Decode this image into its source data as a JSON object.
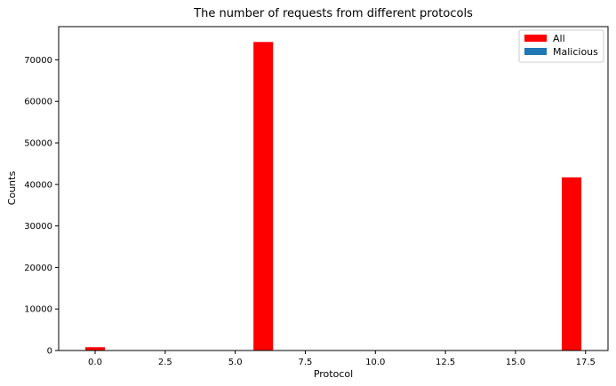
{
  "chart_data": {
    "type": "bar",
    "title": "The number of requests from different protocols",
    "xlabel": "Protocol",
    "ylabel": "Counts",
    "xlim": [
      -1.3,
      18.3
    ],
    "ylim": [
      0,
      78000
    ],
    "bar_width": 0.7,
    "x_ticks": [
      0.0,
      2.5,
      5.0,
      7.5,
      10.0,
      12.5,
      15.0,
      17.5
    ],
    "x_tick_labels": [
      "0.0",
      "2.5",
      "5.0",
      "7.5",
      "10.0",
      "12.5",
      "15.0",
      "17.5"
    ],
    "y_ticks": [
      0,
      10000,
      20000,
      30000,
      40000,
      50000,
      60000,
      70000
    ],
    "y_tick_labels": [
      "0",
      "10000",
      "20000",
      "30000",
      "40000",
      "50000",
      "60000",
      "70000"
    ],
    "grid": false,
    "legend_position": "upper right",
    "series": [
      {
        "name": "All",
        "color": "#ff0000",
        "x": [
          0,
          6,
          17
        ],
        "values": [
          800,
          74300,
          41700
        ]
      },
      {
        "name": "Malicious",
        "color": "#1f77b4",
        "x": [
          0,
          6,
          17
        ],
        "values": [
          0,
          0,
          0
        ]
      }
    ]
  }
}
